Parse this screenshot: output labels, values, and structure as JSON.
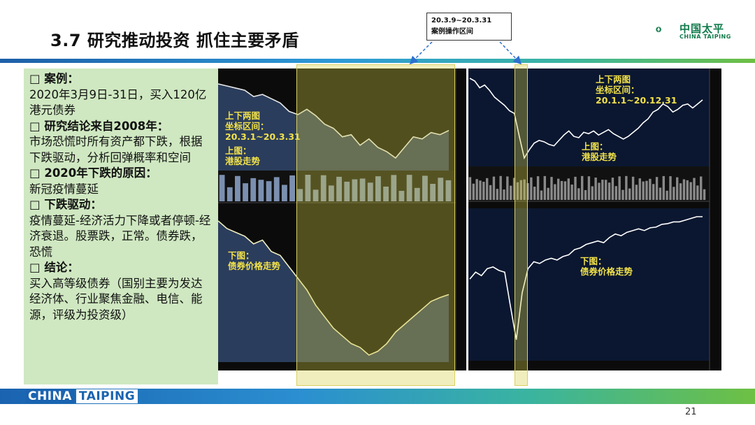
{
  "title": "3.7 研究推动投资 抓住主要矛盾",
  "logo": {
    "cn": "中国太平",
    "en": "CHINA TAIPING",
    "icon": "pine-tree-logo-icon",
    "color": "#0f7a4a"
  },
  "callout": {
    "line1": "20.3.9~20.3.31",
    "line2": "案例操作区间"
  },
  "left_panel": [
    {
      "text": "□ 案例：",
      "head": true
    },
    {
      "text": "2020年3月9日-31日，买入120亿港元债券",
      "head": false
    },
    {
      "text": "□ 研究结论来自2008年：",
      "head": true
    },
    {
      "text": "市场恐慌时所有资产都下跌，根据下跌驱动，分析回弹概率和空间",
      "head": false
    },
    {
      "text": "□ 2020年下跌的原因：",
      "head": true
    },
    {
      "text": "新冠疫情蔓延",
      "head": false
    },
    {
      "text": "□ 下跌驱动：",
      "head": true
    },
    {
      "text": "疫情蔓延-经济活力下降或者停顿-经济衰退。股票跌，正常。债券跌，恐慌",
      "head": false
    },
    {
      "text": "□ 结论：",
      "head": true
    },
    {
      "text": "买入高等级债券（国别主要为发达经济体、行业聚焦金融、电信、能源，评级为投资级）",
      "head": false
    }
  ],
  "left_chart": {
    "range_label": [
      "上下两图",
      "坐标区间：",
      "20.3.1~20.3.31"
    ],
    "top_label": [
      "上图：",
      "港股走势"
    ],
    "bottom_label": [
      "下图：",
      "债券价格走势"
    ]
  },
  "right_chart": {
    "range_label": [
      "上下两图",
      "坐标区间：",
      "20.1.1~20.12.31"
    ],
    "top_label": [
      "上图：",
      "港股走势"
    ],
    "bottom_label": [
      "下图：",
      "债券价格走势"
    ]
  },
  "chart_data": [
    {
      "type": "area",
      "title": "",
      "series": [
        {
          "name": "",
          "values": [
            26500,
            26400,
            26300,
            26200,
            25900,
            26000,
            25800,
            25600,
            25200,
            25050,
            25300,
            25000,
            24600,
            24400,
            24000,
            24100,
            23600,
            23900,
            23500,
            23300,
            23000,
            23500,
            24000,
            23900,
            24200,
            24100,
            24300
          ]
        }
      ]
    },
    {
      "type": "area",
      "title": "",
      "series": [
        {
          "name": "",
          "values": [
            131,
            130,
            129.5,
            129,
            128,
            128.5,
            127,
            126.5,
            125,
            123.5,
            122,
            120,
            118.5,
            117,
            116,
            115,
            114.5,
            113.5,
            114,
            115,
            116.5,
            117.5,
            118.5,
            119.5,
            120.5,
            121,
            121.4
          ]
        }
      ]
    },
    {
      "type": "line",
      "title": "",
      "series": [
        {
          "name": "",
          "values": [
            28800,
            28600,
            28100,
            28300,
            27900,
            27400,
            27100,
            26800,
            26400,
            26200,
            24500,
            22900,
            23500,
            24000,
            24200,
            24100,
            23900,
            23800,
            24200,
            24600,
            24900,
            24500,
            24400,
            24800,
            24700,
            24900,
            24600,
            24800,
            25000,
            24700,
            24500,
            24300,
            24500,
            24800,
            25100,
            25500,
            25800,
            26300,
            26500,
            26900,
            26700,
            26300,
            26500,
            26800,
            26900,
            26600,
            26900,
            27200
          ]
        }
      ]
    },
    {
      "type": "line",
      "title": "",
      "series": [
        {
          "name": "",
          "values": [
            134,
            136,
            135,
            137,
            137.5,
            136.5,
            136,
            126,
            116.5,
            130,
            137,
            139,
            138.5,
            139.5,
            140,
            139.5,
            140.5,
            141,
            142.5,
            143,
            144,
            144.5,
            145,
            144.5,
            146,
            147,
            146.5,
            147.5,
            148,
            148.5,
            148,
            148.8,
            149,
            149.8,
            150,
            150.5,
            150.5,
            151,
            151.5,
            152,
            152
          ]
        }
      ]
    }
  ],
  "page_number": "21",
  "footer": {
    "word1": "CHINA",
    "word2": "TAIPING"
  }
}
